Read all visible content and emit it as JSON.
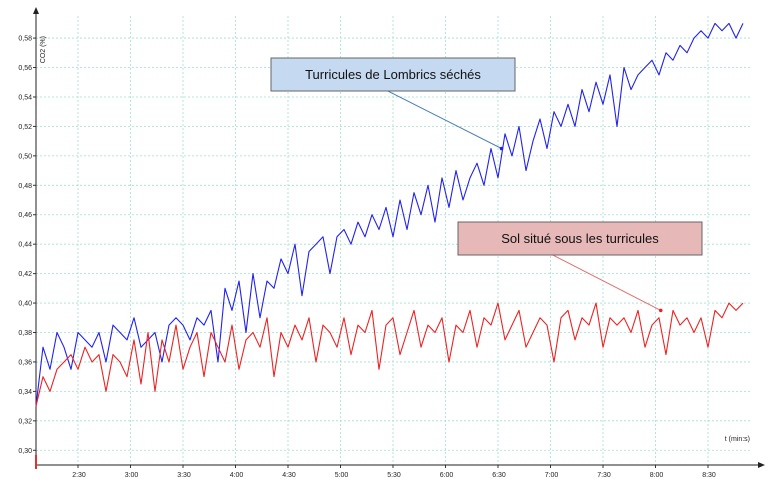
{
  "chart_data": {
    "type": "line",
    "ylabel": "CO2 (%)",
    "xlabel": "t (min:s)",
    "y_ticks": [
      "0,30",
      "0,32",
      "0,34",
      "0,36",
      "0,38",
      "0,40",
      "0,42",
      "0,44",
      "0,46",
      "0,48",
      "0,50",
      "0,52",
      "0,54",
      "0,56",
      "0,58"
    ],
    "x_ticks": [
      "2:30",
      "3:00",
      "3:30",
      "4:00",
      "4:30",
      "5:00",
      "5:30",
      "6:00",
      "6:30",
      "7:00",
      "7:30",
      "8:00",
      "8:30"
    ],
    "xlim_seconds": [
      126,
      534
    ],
    "ylim": [
      0.29,
      0.595
    ],
    "grid": true,
    "series": [
      {
        "name": "Turricules de Lombrics séchés",
        "color": "#2222ee",
        "x_seconds": [
          126,
          130,
          134,
          138,
          142,
          146,
          150,
          154,
          158,
          162,
          166,
          170,
          174,
          178,
          182,
          186,
          190,
          194,
          198,
          202,
          206,
          210,
          214,
          218,
          222,
          226,
          230,
          234,
          238,
          242,
          246,
          250,
          254,
          258,
          262,
          266,
          270,
          274,
          278,
          282,
          286,
          290,
          294,
          298,
          302,
          306,
          310,
          314,
          318,
          322,
          326,
          330,
          334,
          338,
          342,
          346,
          350,
          354,
          358,
          362,
          366,
          370,
          374,
          378,
          382,
          386,
          390,
          394,
          398,
          402,
          406,
          410,
          414,
          418,
          422,
          426,
          430,
          434,
          438,
          442,
          446,
          450,
          454,
          458,
          462,
          466,
          470,
          474,
          478,
          482,
          486,
          490,
          494,
          498,
          502,
          506,
          510,
          514,
          518,
          522,
          526,
          530
        ],
        "values": [
          0.33,
          0.37,
          0.355,
          0.38,
          0.37,
          0.355,
          0.38,
          0.375,
          0.37,
          0.38,
          0.36,
          0.385,
          0.38,
          0.375,
          0.39,
          0.37,
          0.375,
          0.38,
          0.36,
          0.385,
          0.39,
          0.385,
          0.375,
          0.39,
          0.385,
          0.395,
          0.36,
          0.41,
          0.395,
          0.415,
          0.38,
          0.42,
          0.39,
          0.415,
          0.41,
          0.43,
          0.42,
          0.44,
          0.405,
          0.435,
          0.44,
          0.445,
          0.42,
          0.445,
          0.45,
          0.44,
          0.455,
          0.445,
          0.46,
          0.45,
          0.465,
          0.445,
          0.47,
          0.45,
          0.475,
          0.46,
          0.48,
          0.455,
          0.485,
          0.465,
          0.49,
          0.47,
          0.485,
          0.495,
          0.48,
          0.505,
          0.485,
          0.515,
          0.5,
          0.52,
          0.49,
          0.51,
          0.525,
          0.505,
          0.53,
          0.52,
          0.535,
          0.52,
          0.545,
          0.53,
          0.55,
          0.535,
          0.555,
          0.52,
          0.56,
          0.545,
          0.555,
          0.56,
          0.565,
          0.555,
          0.57,
          0.565,
          0.575,
          0.57,
          0.58,
          0.585,
          0.58,
          0.59,
          0.585,
          0.59,
          0.58,
          0.59
        ]
      },
      {
        "name": "Sol situé sous les turricules",
        "color": "#ee2222",
        "x_seconds": [
          126,
          130,
          134,
          138,
          142,
          146,
          150,
          154,
          158,
          162,
          166,
          170,
          174,
          178,
          182,
          186,
          190,
          194,
          198,
          202,
          206,
          210,
          214,
          218,
          222,
          226,
          230,
          234,
          238,
          242,
          246,
          250,
          254,
          258,
          262,
          266,
          270,
          274,
          278,
          282,
          286,
          290,
          294,
          298,
          302,
          306,
          310,
          314,
          318,
          322,
          326,
          330,
          334,
          338,
          342,
          346,
          350,
          354,
          358,
          362,
          366,
          370,
          374,
          378,
          382,
          386,
          390,
          394,
          398,
          402,
          406,
          410,
          414,
          418,
          422,
          426,
          430,
          434,
          438,
          442,
          446,
          450,
          454,
          458,
          462,
          466,
          470,
          474,
          478,
          482,
          486,
          490,
          494,
          498,
          502,
          506,
          510,
          514,
          518,
          522,
          526,
          530
        ],
        "values": [
          0.33,
          0.35,
          0.34,
          0.355,
          0.36,
          0.365,
          0.355,
          0.37,
          0.36,
          0.365,
          0.34,
          0.365,
          0.36,
          0.35,
          0.375,
          0.345,
          0.38,
          0.34,
          0.375,
          0.36,
          0.385,
          0.355,
          0.37,
          0.38,
          0.35,
          0.38,
          0.37,
          0.36,
          0.385,
          0.355,
          0.375,
          0.38,
          0.37,
          0.39,
          0.35,
          0.38,
          0.37,
          0.385,
          0.375,
          0.39,
          0.36,
          0.385,
          0.38,
          0.37,
          0.39,
          0.365,
          0.385,
          0.38,
          0.395,
          0.355,
          0.385,
          0.39,
          0.365,
          0.38,
          0.395,
          0.37,
          0.385,
          0.38,
          0.39,
          0.36,
          0.385,
          0.38,
          0.395,
          0.37,
          0.39,
          0.385,
          0.4,
          0.375,
          0.385,
          0.395,
          0.37,
          0.38,
          0.39,
          0.385,
          0.36,
          0.39,
          0.395,
          0.375,
          0.39,
          0.385,
          0.4,
          0.37,
          0.39,
          0.385,
          0.39,
          0.38,
          0.395,
          0.37,
          0.385,
          0.39,
          0.365,
          0.395,
          0.385,
          0.39,
          0.38,
          0.39,
          0.37,
          0.395,
          0.39,
          0.4,
          0.395,
          0.4
        ]
      }
    ],
    "annotations": [
      {
        "text": "Turricules de Lombrics séchés",
        "fill": "#c5d9f1",
        "point": {
          "x_seconds": 392,
          "y": 0.505
        }
      },
      {
        "text": "Sol situé sous les turricules",
        "fill": "#e6b8b7",
        "point": {
          "x_seconds": 483,
          "y": 0.395
        }
      }
    ]
  }
}
